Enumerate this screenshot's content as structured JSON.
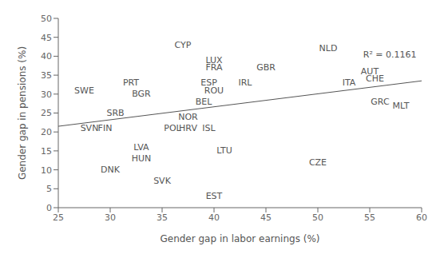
{
  "chart_data": {
    "type": "scatter",
    "xlabel": "Gender gap in labor earnings (%)",
    "ylabel": "Gender gap in pensions (%)",
    "labels": [
      "SWE",
      "SVN",
      "FIN",
      "DNK",
      "SRB",
      "PRT",
      "BGR",
      "HUN",
      "LVA",
      "SVK",
      "POL",
      "HRV",
      "CYP",
      "NOR",
      "BEL",
      "LTU",
      "ISL",
      "LUX",
      "FRA",
      "ESP",
      "ROU",
      "EST",
      "IRL",
      "GBR",
      "CZE",
      "NLD",
      "ITA",
      "AUT",
      "CHE",
      "GRC",
      "MLT"
    ],
    "x": [
      27.5,
      28.0,
      29.5,
      30.0,
      30.5,
      32.0,
      33.0,
      33.0,
      33.0,
      35.0,
      36.0,
      37.5,
      37.0,
      37.5,
      39.0,
      41.0,
      39.5,
      40.0,
      40.0,
      39.5,
      40.0,
      40.0,
      43.0,
      45.0,
      50.0,
      51.0,
      53.0,
      55.0,
      55.5,
      56.0,
      58.0
    ],
    "values": [
      31,
      21,
      21,
      10,
      25,
      33,
      30,
      13,
      16,
      7,
      21,
      21,
      43,
      24,
      28,
      15,
      21,
      39,
      37,
      33,
      31,
      3,
      33,
      37,
      12,
      42,
      33,
      36,
      34,
      28,
      27
    ],
    "marker": "text",
    "color": "#555555",
    "trendline": {
      "x": [
        25,
        60
      ],
      "y": [
        21.5,
        33.5
      ]
    },
    "annotations": [
      {
        "text": "R² = 0.1161",
        "x": 59.5,
        "y": 40.5
      }
    ],
    "xlim": [
      25,
      60
    ],
    "ylim": [
      0,
      50
    ],
    "xticks": [
      25,
      30,
      35,
      40,
      45,
      50,
      55,
      60
    ],
    "yticks": [
      0,
      5,
      10,
      15,
      20,
      25,
      30,
      35,
      40,
      45,
      50
    ],
    "grid": false
  }
}
